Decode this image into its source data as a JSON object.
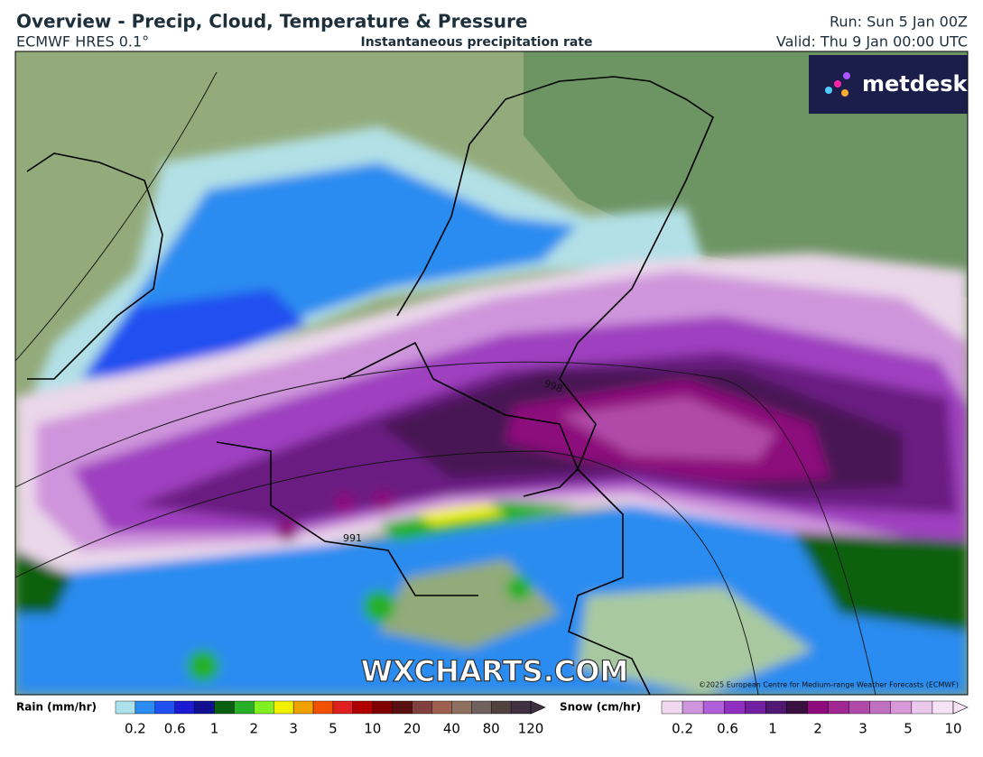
{
  "header": {
    "title": "Overview - Precip, Cloud, Temperature & Pressure",
    "model": "ECMWF HRES 0.1°",
    "subtitle": "Instantaneous precipitation rate",
    "run": "Run: Sun 5 Jan 00Z",
    "valid": "Valid: Thu 9 Jan 00:00 UTC"
  },
  "map": {
    "logo": "metdesk",
    "watermark": "WXCHARTS.COM",
    "copyright": "©2025 European Centre for Medium-range Weather Forecasts (ECMWF)",
    "isobar_labels": [
      "998",
      "991"
    ]
  },
  "legend": {
    "rain": {
      "label": "Rain (mm/hr)",
      "ticks": [
        "0.2",
        "0.6",
        "1",
        "2",
        "3",
        "5",
        "10",
        "20",
        "40",
        "80",
        "120"
      ]
    },
    "snow": {
      "label": "Snow (cm/hr)",
      "ticks": [
        "0.2",
        "0.6",
        "1",
        "2",
        "3",
        "5",
        "10"
      ]
    }
  }
}
